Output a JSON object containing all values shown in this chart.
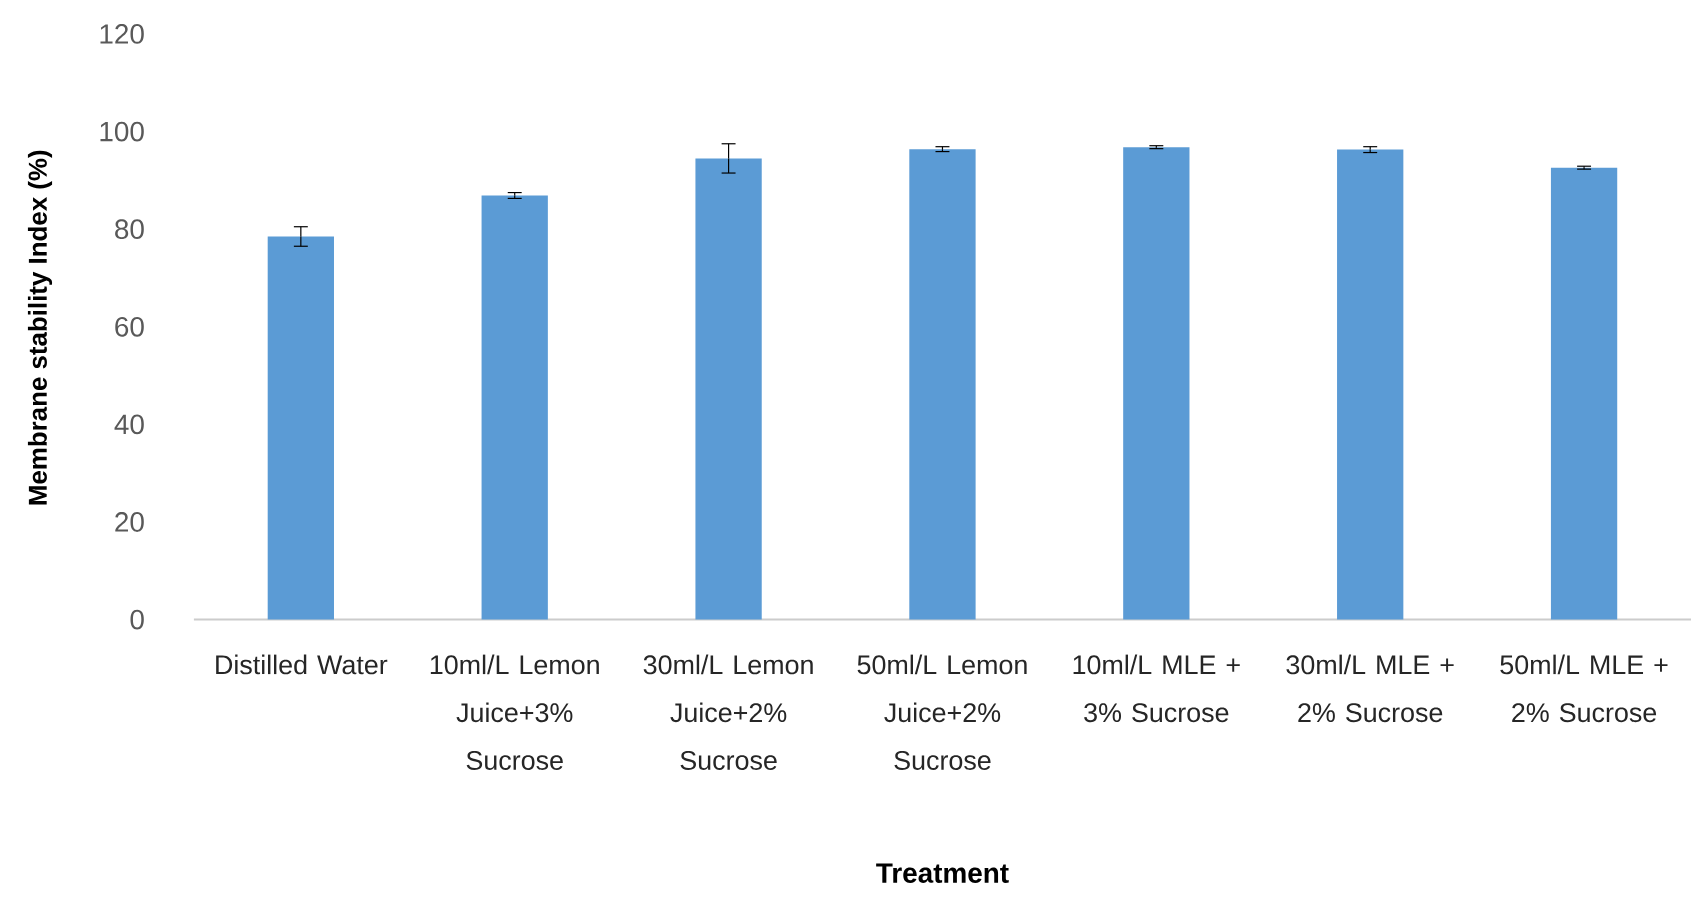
{
  "chart_data": {
    "type": "bar",
    "xlabel": "Treatment",
    "ylabel": "Membrane stability Index (%)",
    "categories": [
      "Distilled Water",
      "10ml/L Lemon Juice+3% Sucrose",
      "30ml/L Lemon Juice+2% Sucrose",
      "50ml/L Lemon Juice+2% Sucrose",
      "10ml/L MLE + 3% Sucrose",
      "30ml/L MLE + 2% Sucrose",
      "50ml/L MLE + 2% Sucrose"
    ],
    "values": [
      78.5,
      86.9,
      94.5,
      96.4,
      96.8,
      96.3,
      92.6
    ],
    "errors": [
      2,
      0.6,
      3,
      0.5,
      0.3,
      0.6,
      0.3
    ],
    "color": "#5b9bd5",
    "ylim": [
      0,
      120
    ],
    "yticks": [
      0,
      20,
      40,
      60,
      80,
      100,
      120
    ]
  }
}
